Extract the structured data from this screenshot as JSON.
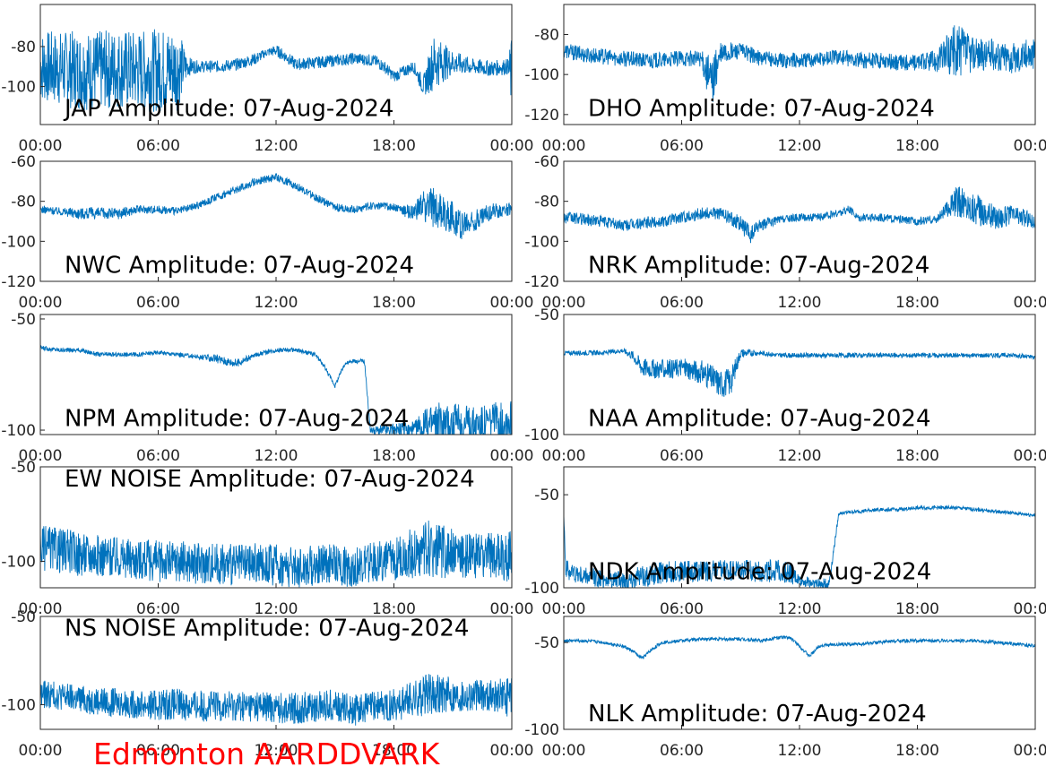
{
  "chart_data": [
    {
      "type": "line",
      "title": "JAP Amplitude: 07-Aug-2024",
      "yticks": [
        "-80",
        "-100"
      ],
      "ytick_values": [
        -80,
        -100
      ],
      "ylim": [
        -119,
        -59
      ],
      "xticks": [
        "00:00",
        "06:00",
        "12:00",
        "18:00",
        "00:00"
      ],
      "xlim": [
        0,
        24
      ],
      "series": [
        {
          "color": "#0072bd",
          "x": [
            0,
            1,
            2,
            3,
            4,
            5,
            6,
            7,
            7.5,
            8,
            9,
            10,
            11,
            11.5,
            12,
            12.5,
            13,
            14,
            15,
            16,
            17,
            17.5,
            18,
            19,
            19.5,
            20,
            21,
            22,
            23,
            23.8,
            24
          ],
          "y": [
            -90,
            -91,
            -92,
            -92,
            -91,
            -92,
            -92,
            -91,
            -90,
            -90,
            -90,
            -89,
            -86,
            -83,
            -82,
            -85,
            -89,
            -88,
            -87,
            -86,
            -87,
            -90,
            -95,
            -90,
            -100,
            -88,
            -88,
            -90,
            -91,
            -90,
            -95
          ],
          "spread": [
            18,
            19,
            20,
            20,
            20,
            20,
            21,
            21,
            5,
            3,
            3,
            3,
            3,
            2,
            3,
            3,
            3,
            3,
            3,
            3,
            3,
            3,
            3,
            3,
            5,
            14,
            6,
            4,
            4,
            4,
            20
          ]
        }
      ]
    },
    {
      "type": "line",
      "title": "DHO Amplitude: 07-Aug-2024",
      "yticks": [
        "-80",
        "-100",
        "-120"
      ],
      "ytick_values": [
        -80,
        -100,
        -120
      ],
      "ylim": [
        -125,
        -65
      ],
      "xticks": [
        "00:00",
        "06:00",
        "12:00",
        "18:00",
        "00:00"
      ],
      "xlim": [
        0,
        24
      ],
      "series": [
        {
          "color": "#0072bd",
          "x": [
            0,
            1,
            2,
            3,
            4,
            5,
            6,
            7,
            7.5,
            8,
            9,
            10,
            11,
            12,
            13,
            14,
            15,
            16,
            17,
            18,
            19,
            19.5,
            20,
            21,
            22,
            23,
            24
          ],
          "y": [
            -88,
            -90,
            -91,
            -92,
            -93,
            -93,
            -92,
            -92,
            -105,
            -90,
            -88,
            -92,
            -93,
            -93,
            -92,
            -91,
            -93,
            -93,
            -94,
            -94,
            -93,
            -90,
            -88,
            -90,
            -90,
            -92,
            -89
          ],
          "spread": [
            4,
            4,
            4,
            4,
            4,
            4,
            4,
            4,
            14,
            6,
            4,
            4,
            4,
            4,
            4,
            4,
            4,
            4,
            4,
            4,
            6,
            10,
            14,
            8,
            8,
            8,
            8
          ]
        }
      ]
    },
    {
      "type": "line",
      "title": "NWC Amplitude: 07-Aug-2024",
      "yticks": [
        "-60",
        "-80",
        "-100",
        "-120"
      ],
      "ytick_values": [
        -60,
        -80,
        -100,
        -120
      ],
      "ylim": [
        -120,
        -60
      ],
      "xticks": [
        "00:00",
        "06:00",
        "12:00",
        "18:00",
        "00:00"
      ],
      "xlim": [
        0,
        24
      ],
      "series": [
        {
          "color": "#0072bd",
          "x": [
            0,
            1,
            2,
            3,
            4,
            5,
            6,
            7,
            8,
            9,
            10,
            11,
            12,
            13,
            14,
            15,
            16,
            17,
            18,
            19,
            19.5,
            20,
            21,
            21.5,
            22,
            23,
            24
          ],
          "y": [
            -84,
            -85,
            -86,
            -86,
            -86,
            -84,
            -84,
            -85,
            -82,
            -78,
            -74,
            -70,
            -68,
            -72,
            -78,
            -83,
            -84,
            -82,
            -83,
            -86,
            -82,
            -83,
            -88,
            -92,
            -90,
            -85,
            -84
          ],
          "spread": [
            2,
            2,
            3,
            3,
            3,
            2,
            2,
            2,
            2,
            2,
            2,
            2,
            2,
            2,
            2,
            2,
            2,
            2,
            2,
            4,
            8,
            10,
            8,
            8,
            6,
            4,
            3
          ]
        }
      ]
    },
    {
      "type": "line",
      "title": "NRK Amplitude: 07-Aug-2024",
      "yticks": [
        "-60",
        "-80",
        "-100",
        "-120"
      ],
      "ytick_values": [
        -60,
        -80,
        -100,
        -120
      ],
      "ylim": [
        -120,
        -60
      ],
      "xticks": [
        "00:00",
        "06:00",
        "12:00",
        "18:00",
        "00:00"
      ],
      "xlim": [
        0,
        24
      ],
      "series": [
        {
          "color": "#0072bd",
          "x": [
            0,
            1,
            2,
            3,
            4,
            5,
            6,
            7,
            8,
            9,
            9.5,
            10,
            11,
            12,
            13,
            14,
            14.5,
            15,
            16,
            17,
            18,
            19,
            19.5,
            20,
            21,
            22,
            23,
            24
          ],
          "y": [
            -88,
            -89,
            -90,
            -92,
            -91,
            -90,
            -88,
            -86,
            -86,
            -91,
            -97,
            -92,
            -89,
            -88,
            -88,
            -86,
            -84,
            -88,
            -88,
            -89,
            -90,
            -89,
            -84,
            -80,
            -84,
            -88,
            -87,
            -90
          ],
          "spread": [
            3,
            3,
            3,
            3,
            3,
            3,
            3,
            3,
            3,
            4,
            5,
            3,
            2,
            2,
            2,
            2,
            2,
            2,
            2,
            2,
            2,
            2,
            4,
            8,
            8,
            6,
            5,
            4
          ]
        }
      ]
    },
    {
      "type": "line",
      "title": "NPM Amplitude: 07-Aug-2024",
      "yticks": [
        "-50",
        "-100"
      ],
      "ytick_values": [
        -50,
        -100
      ],
      "ylim": [
        -102,
        -48
      ],
      "xticks": [
        "00:00",
        "06:00",
        "12:00",
        "18:00",
        "00:00"
      ],
      "xlim": [
        0,
        24
      ],
      "series": [
        {
          "color": "#0072bd",
          "x": [
            0,
            1,
            2,
            3,
            4,
            5,
            6,
            7,
            8,
            9,
            10,
            11,
            12,
            13,
            14,
            14.5,
            15,
            15.5,
            16,
            16.5,
            16.8,
            17,
            18,
            19,
            20,
            21,
            22,
            23,
            24
          ],
          "y": [
            -63,
            -64,
            -64,
            -66,
            -66,
            -66,
            -65,
            -66,
            -67,
            -68,
            -70,
            -66,
            -64,
            -64,
            -66,
            -72,
            -80,
            -70,
            -69,
            -69,
            -100,
            -100,
            -100,
            -100,
            -97,
            -97,
            -97,
            -96,
            -95
          ],
          "spread": [
            1,
            1,
            1,
            1,
            1,
            1,
            1,
            1,
            1,
            2,
            2,
            1,
            1,
            1,
            1,
            1,
            1,
            1,
            1,
            1,
            1,
            2,
            3,
            4,
            10,
            9,
            8,
            8,
            10
          ]
        }
      ]
    },
    {
      "type": "line",
      "title": "NAA Amplitude: 07-Aug-2024",
      "yticks": [
        "-50",
        "-100"
      ],
      "ytick_values": [
        -50,
        -100
      ],
      "ylim": [
        -100,
        -50
      ],
      "xticks": [
        "00:00",
        "06:00",
        "12:00",
        "18:00",
        "00:00"
      ],
      "xlim": [
        0,
        24
      ],
      "series": [
        {
          "color": "#0072bd",
          "x": [
            0,
            1,
            2,
            3,
            3.5,
            4,
            5,
            6,
            7,
            8,
            8.5,
            9,
            10,
            11,
            12,
            13,
            14,
            15,
            16,
            17,
            18,
            19,
            20,
            21,
            22,
            23,
            24
          ],
          "y": [
            -66,
            -66,
            -66,
            -65,
            -67,
            -72,
            -73,
            -72,
            -74,
            -79,
            -78,
            -66,
            -66,
            -67,
            -67,
            -67,
            -67,
            -67,
            -67,
            -67,
            -67,
            -67,
            -67,
            -67,
            -67,
            -67,
            -68
          ],
          "spread": [
            1,
            1,
            1,
            1,
            2,
            4,
            4,
            4,
            5,
            6,
            6,
            2,
            1,
            1,
            1,
            1,
            1,
            1,
            1,
            1,
            1,
            1,
            1,
            1,
            1,
            1,
            1
          ]
        }
      ]
    },
    {
      "type": "line",
      "title": "EW NOISE Amplitude: 07-Aug-2024",
      "yticks": [
        "-50",
        "-100"
      ],
      "ytick_values": [
        -50,
        -100
      ],
      "ylim": [
        -114,
        -50
      ],
      "xticks": [
        "00:00",
        "06:00",
        "12:00",
        "18:00",
        "00:00"
      ],
      "xlim": [
        0,
        24
      ],
      "series": [
        {
          "color": "#0072bd",
          "x": [
            0,
            1,
            2,
            3,
            4,
            5,
            6,
            7,
            8,
            9,
            10,
            11,
            12,
            13,
            14,
            15,
            16,
            17,
            18,
            19,
            20,
            21,
            22,
            23,
            24
          ],
          "y": [
            -93,
            -94,
            -96,
            -97,
            -98,
            -99,
            -100,
            -100,
            -101,
            -101,
            -102,
            -101,
            -102,
            -103,
            -102,
            -102,
            -103,
            -100,
            -99,
            -96,
            -93,
            -96,
            -97,
            -97,
            -98
          ],
          "spread": [
            12,
            12,
            12,
            11,
            11,
            11,
            11,
            11,
            11,
            11,
            11,
            11,
            11,
            11,
            11,
            11,
            11,
            11,
            11,
            14,
            16,
            13,
            12,
            12,
            14
          ]
        }
      ]
    },
    {
      "type": "line",
      "title": "NDK Amplitude: 07-Aug-2024",
      "yticks": [
        "-50",
        "-100"
      ],
      "ytick_values": [
        -50,
        -100
      ],
      "ylim": [
        -100,
        -35
      ],
      "xticks": [
        "00:00",
        "06:00",
        "12:00",
        "18:00",
        "00:00"
      ],
      "xlim": [
        0,
        24
      ],
      "series": [
        {
          "color": "#0072bd",
          "x": [
            0,
            0.1,
            0.5,
            1,
            2,
            3,
            4,
            5,
            6,
            7,
            8,
            9,
            10,
            11,
            11.5,
            12,
            13,
            13.5,
            14,
            15,
            16,
            17,
            18,
            19,
            20,
            21,
            22,
            23,
            24
          ],
          "y": [
            -60,
            -90,
            -92,
            -94,
            -95,
            -96,
            -94,
            -92,
            -91,
            -91,
            -91,
            -91,
            -91,
            -91,
            -92,
            -96,
            -98,
            -98,
            -60,
            -59,
            -58,
            -58,
            -57,
            -57,
            -57,
            -58,
            -59,
            -60,
            -61
          ],
          "spread": [
            1,
            6,
            5,
            5,
            5,
            5,
            6,
            6,
            6,
            6,
            6,
            6,
            6,
            6,
            6,
            3,
            3,
            3,
            1,
            1,
            1,
            1,
            1,
            1,
            1,
            1,
            1,
            1,
            1
          ]
        }
      ]
    },
    {
      "type": "line",
      "title": "NS NOISE Amplitude: 07-Aug-2024",
      "yticks": [
        "-50",
        "-100"
      ],
      "ytick_values": [
        -50,
        -100
      ],
      "ylim": [
        -114,
        -50
      ],
      "xticks": [
        "00:00",
        "06:00",
        "12:00",
        "18:00",
        "00:00"
      ],
      "xlim": [
        0,
        24
      ],
      "series": [
        {
          "color": "#0072bd",
          "x": [
            0,
            1,
            2,
            3,
            4,
            5,
            6,
            7,
            8,
            9,
            10,
            11,
            12,
            13,
            14,
            15,
            16,
            17,
            18,
            19,
            20,
            21,
            22,
            23,
            24
          ],
          "y": [
            -94,
            -95,
            -97,
            -98,
            -99,
            -100,
            -100,
            -100,
            -101,
            -101,
            -101,
            -101,
            -102,
            -102,
            -101,
            -100,
            -103,
            -101,
            -100,
            -97,
            -93,
            -95,
            -95,
            -95,
            -96
          ],
          "spread": [
            8,
            8,
            8,
            8,
            8,
            8,
            9,
            9,
            9,
            9,
            9,
            9,
            9,
            9,
            9,
            9,
            9,
            9,
            9,
            11,
            12,
            10,
            9,
            9,
            12
          ]
        }
      ]
    },
    {
      "type": "line",
      "title": "NLK Amplitude: 07-Aug-2024",
      "yticks": [
        "-50",
        "-100"
      ],
      "ytick_values": [
        -50,
        -100
      ],
      "ylim": [
        -100,
        -35
      ],
      "xticks": [
        "00:00",
        "06:00",
        "12:00",
        "18:00",
        "00:00"
      ],
      "xlim": [
        0,
        24
      ],
      "series": [
        {
          "color": "#0072bd",
          "x": [
            0,
            0.5,
            1,
            2,
            3,
            3.5,
            4,
            4.5,
            5,
            6,
            7,
            8,
            9,
            10,
            11,
            11.5,
            12,
            12.5,
            13,
            14,
            15,
            16,
            17,
            18,
            19,
            20,
            21,
            22,
            23,
            24
          ],
          "y": [
            -49,
            -49,
            -49,
            -50,
            -52,
            -55,
            -59,
            -54,
            -50,
            -49,
            -48,
            -48,
            -48,
            -49,
            -47,
            -47,
            -52,
            -58,
            -52,
            -51,
            -51,
            -50,
            -49,
            -49,
            -49,
            -49,
            -49,
            -50,
            -51,
            -52
          ],
          "spread": [
            1,
            1,
            1,
            1,
            1,
            1,
            1,
            1,
            1,
            1,
            1,
            1,
            1,
            1,
            1,
            1,
            1,
            1,
            1,
            1,
            1,
            1,
            1,
            1,
            1,
            1,
            1,
            1,
            1,
            1
          ]
        }
      ]
    }
  ],
  "footer": {
    "label": "Edmonton AARDDVARK",
    "color": "#ff0000"
  }
}
